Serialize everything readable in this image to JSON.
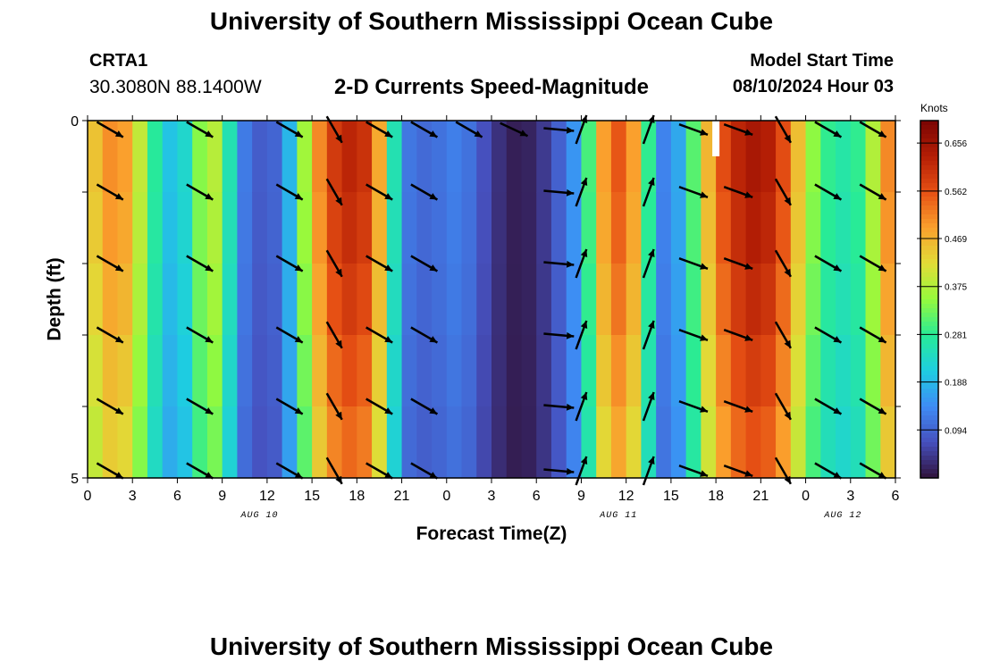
{
  "header": {
    "title": "University of Southern Mississippi Ocean Cube",
    "footer_title": "University of Southern Mississippi Ocean Cube",
    "station": "CRTA1",
    "coordinates": "30.3080N  88.1400W",
    "subtitle": "2-D Currents Speed-Magnitude",
    "model_start_label": "Model Start Time",
    "model_start_value": "08/10/2024 Hour 03"
  },
  "chart_data": {
    "type": "heatmap",
    "title": "2-D Currents Speed-Magnitude",
    "xlabel": "Forecast Time(Z)",
    "ylabel": "Depth (ft)",
    "x_ticks": [
      "0",
      "3",
      "6",
      "9",
      "12",
      "15",
      "18",
      "21",
      "0",
      "3",
      "6",
      "9",
      "12",
      "15",
      "18",
      "21",
      "0",
      "3",
      "6"
    ],
    "y_ticks": [
      "0",
      "5"
    ],
    "ylim": [
      0,
      5
    ],
    "date_labels": [
      {
        "label": "AUG 10",
        "hour_index": 11.5
      },
      {
        "label": "AUG 11",
        "hour_index": 35.5
      },
      {
        "label": "AUG 12",
        "hour_index": 50.5
      }
    ],
    "hours_span": 54,
    "colorbar": {
      "unit": "Knots",
      "min": 0.0,
      "max": 0.7,
      "ticks": [
        "0.656",
        "0.562",
        "0.469",
        "0.375",
        "0.281",
        "0.188",
        "0.094"
      ],
      "tick_values": [
        0.656,
        0.562,
        0.469,
        0.375,
        0.281,
        0.188,
        0.094
      ]
    },
    "speed_profile": {
      "hours": [
        0,
        1,
        2,
        3,
        4,
        5,
        6,
        7,
        8,
        9,
        10,
        11,
        12,
        13,
        14,
        15,
        16,
        17,
        18,
        19,
        20,
        21,
        22,
        23,
        24,
        25,
        26,
        27,
        28,
        29,
        30,
        31,
        32,
        33,
        34,
        35,
        36,
        37,
        38,
        39,
        40,
        41,
        42,
        43,
        44,
        45,
        46,
        47,
        48,
        49,
        50,
        51,
        52,
        53,
        54
      ],
      "surface_knots": [
        0.42,
        0.48,
        0.53,
        0.45,
        0.33,
        0.22,
        0.18,
        0.28,
        0.4,
        0.36,
        0.15,
        0.09,
        0.08,
        0.11,
        0.26,
        0.46,
        0.56,
        0.62,
        0.62,
        0.58,
        0.38,
        0.13,
        0.1,
        0.1,
        0.12,
        0.13,
        0.09,
        0.05,
        0.02,
        0.01,
        0.03,
        0.06,
        0.12,
        0.18,
        0.42,
        0.56,
        0.55,
        0.43,
        0.14,
        0.12,
        0.22,
        0.4,
        0.53,
        0.6,
        0.64,
        0.65,
        0.61,
        0.52,
        0.39,
        0.3,
        0.27,
        0.26,
        0.31,
        0.44,
        0.58
      ],
      "depth_factor": [
        1.0,
        0.98,
        0.95,
        0.91,
        0.87
      ]
    },
    "vectors": {
      "hours": [
        1.5,
        7.5,
        13.5,
        16.5,
        19.5,
        22.5,
        25.5,
        28.5,
        31.5,
        33,
        37.5,
        40.5,
        43.5,
        46.5,
        49.5,
        52.5
      ],
      "depths": [
        0.0,
        1.0,
        2.0,
        3.0,
        4.0,
        4.9
      ],
      "direction_deg": [
        120,
        120,
        120,
        150,
        120,
        120,
        120,
        115,
        95,
        20,
        20,
        110,
        110,
        150,
        120,
        120
      ],
      "top_only": [
        false,
        false,
        false,
        false,
        false,
        false,
        true,
        true,
        false,
        false,
        false,
        false,
        false,
        false,
        false,
        false
      ]
    },
    "missing_marker": {
      "hour": 42,
      "depth_top": 0.0,
      "depth_bottom": 0.5
    }
  }
}
